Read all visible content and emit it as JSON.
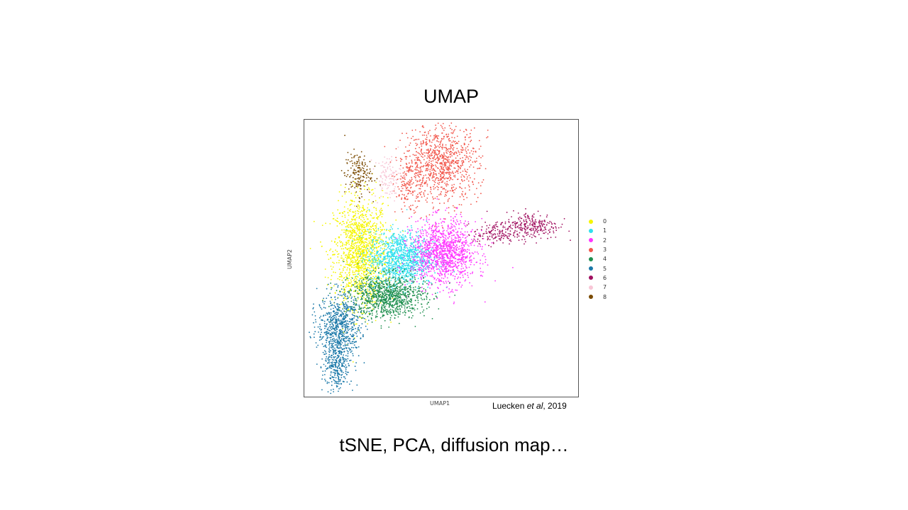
{
  "slide": {
    "title": "UMAP",
    "subtitle": "tSNE, PCA, diffusion map…",
    "citation": {
      "author": "Luecken ",
      "etal": "et al",
      "year": ", 2019"
    }
  },
  "chart_data": {
    "type": "scatter",
    "title": "",
    "xlabel": "UMAP1",
    "ylabel": "UMAP2",
    "xlim": [
      0,
      100
    ],
    "ylim": [
      0,
      100
    ],
    "grid": false,
    "ticks": false,
    "legend_position": "right",
    "series": [
      {
        "name": "0",
        "color": "#f5f500",
        "clusters": [
          {
            "cx": 20,
            "cy": 52,
            "sx": 5,
            "sy": 10,
            "n": 1400
          }
        ]
      },
      {
        "name": "1",
        "color": "#2fe0ee",
        "clusters": [
          {
            "cx": 35,
            "cy": 50,
            "sx": 6,
            "sy": 5,
            "n": 1100
          }
        ]
      },
      {
        "name": "2",
        "color": "#ff33ff",
        "clusters": [
          {
            "cx": 51,
            "cy": 52,
            "sx": 6,
            "sy": 6,
            "n": 1200
          }
        ]
      },
      {
        "name": "3",
        "color": "#f2564b",
        "clusters": [
          {
            "cx": 50,
            "cy": 85,
            "sx": 7,
            "sy": 7,
            "n": 900
          },
          {
            "cx": 38,
            "cy": 77,
            "sx": 2.5,
            "sy": 5,
            "n": 150
          }
        ]
      },
      {
        "name": "4",
        "color": "#1f8f4f",
        "clusters": [
          {
            "cx": 30,
            "cy": 36,
            "sx": 7,
            "sy": 4,
            "n": 1000
          }
        ]
      },
      {
        "name": "5",
        "color": "#1a78a8",
        "clusters": [
          {
            "cx": 12,
            "cy": 25,
            "sx": 4,
            "sy": 6,
            "n": 700
          },
          {
            "cx": 11,
            "cy": 10,
            "sx": 2.5,
            "sy": 5,
            "n": 300
          }
        ]
      },
      {
        "name": "6",
        "color": "#a01060",
        "clusters": [
          {
            "cx": 70,
            "cy": 59,
            "sx": 4,
            "sy": 2,
            "n": 150
          },
          {
            "cx": 84,
            "cy": 62,
            "sx": 5,
            "sy": 2.5,
            "n": 250
          }
        ]
      },
      {
        "name": "7",
        "color": "#f8c6d6",
        "clusters": [
          {
            "cx": 30,
            "cy": 80,
            "sx": 2.5,
            "sy": 4,
            "n": 120
          }
        ]
      },
      {
        "name": "8",
        "color": "#7a4a00",
        "clusters": [
          {
            "cx": 19,
            "cy": 81,
            "sx": 2.5,
            "sy": 4,
            "n": 170
          }
        ]
      }
    ]
  }
}
